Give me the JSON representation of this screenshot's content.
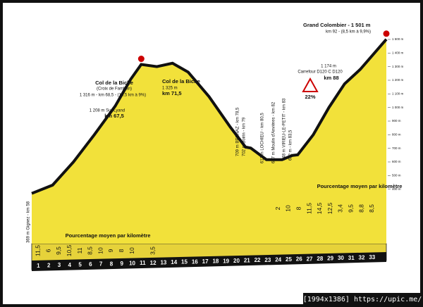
{
  "chart_data": {
    "type": "area",
    "color": "#f2e13a",
    "line_color": "#111",
    "x": [
      0,
      2,
      4,
      6,
      8,
      9.5,
      10.5,
      12,
      13.5,
      15,
      17,
      19,
      20.5,
      21,
      22.5,
      24,
      25,
      25.5,
      27,
      28.5,
      30,
      31.5,
      34
    ],
    "values": [
      369,
      430,
      600,
      800,
      1010,
      1208,
      1316,
      1300,
      1325,
      1260,
      1080,
      860,
      709,
      702,
      617,
      617,
      648,
      652,
      800,
      1000,
      1174,
      1280,
      1501
    ],
    "xlim": [
      0,
      34
    ],
    "ylim": [
      0,
      1700
    ],
    "xticks": [
      1,
      2,
      3,
      4,
      5,
      6,
      7,
      8,
      9,
      10,
      11,
      12,
      13,
      14,
      15,
      16,
      17,
      18,
      19,
      20,
      21,
      22,
      23,
      24,
      25,
      26,
      27,
      28,
      29,
      30,
      31,
      32,
      33
    ],
    "yticks": [
      {
        "value": 1500,
        "label": "1 500 m"
      },
      {
        "value": 1400,
        "label": "1 400 m"
      },
      {
        "value": 1300,
        "label": "1 300 m"
      },
      {
        "value": 1200,
        "label": "1 200 m"
      },
      {
        "value": 1100,
        "label": "1 100 m"
      },
      {
        "value": 1000,
        "label": "1 000 m"
      },
      {
        "value": 900,
        "label": "900 m"
      },
      {
        "value": 800,
        "label": "800 m"
      },
      {
        "value": 700,
        "label": "700 m"
      },
      {
        "value": 600,
        "label": "600 m"
      },
      {
        "value": 500,
        "label": "500 m"
      },
      {
        "value": 400,
        "label": "400 m"
      }
    ],
    "grades": [
      "11,5",
      "6",
      "9,5",
      "10,5",
      "11",
      "8,5",
      "10",
      "9",
      "8",
      "10",
      null,
      "3,5",
      null,
      null,
      null,
      null,
      null,
      null,
      null,
      null,
      null,
      null,
      null,
      "2",
      "10",
      "8",
      "11,5",
      "14,5",
      "12,5",
      "3,4",
      "9,5",
      "8,8",
      "8,5"
    ],
    "annotations": {
      "col1_name": "Col de la Biche",
      "col1_sub": "(Croix de Famban)",
      "col1_info": "1 316 m - km 68,5 - (10,5 km à 9%)",
      "lyand": "1 208 m Sur Lyand",
      "lyand_km": "km 67,5",
      "col2_name": "Col de la Biche",
      "col2_alt": "1 325 m",
      "col2_km": "km 71,5",
      "carrefour_alt": "1 174 m",
      "carrefour": "Carrefour D120 C D120",
      "carrefour_km": "km 88",
      "gc_name": "Grand Colombier - 1 501 m",
      "gc_info": "km 92 - (8,5 km à 9,9%)",
      "steep": "22%",
      "avg_left": "Pourcentage moyen par kilomètre",
      "avg_right": "Pourcentage moyen par kilomètre",
      "start": "369 m Gignez - km 58",
      "brenaz": "709 m BRENAZ - km 78,5",
      "boirin": "702 m Boirin - km 79",
      "lochieu": "617 m LOCHIEU - km 80,5",
      "moulin": "617 m Moulin d'Anvières - km 82",
      "virieu": "648 m VIRIEU-LE-PETIT - km 83",
      "km835": "652 m - km 83,5"
    }
  },
  "watermark": "[1994x1386] https://upic.me/"
}
